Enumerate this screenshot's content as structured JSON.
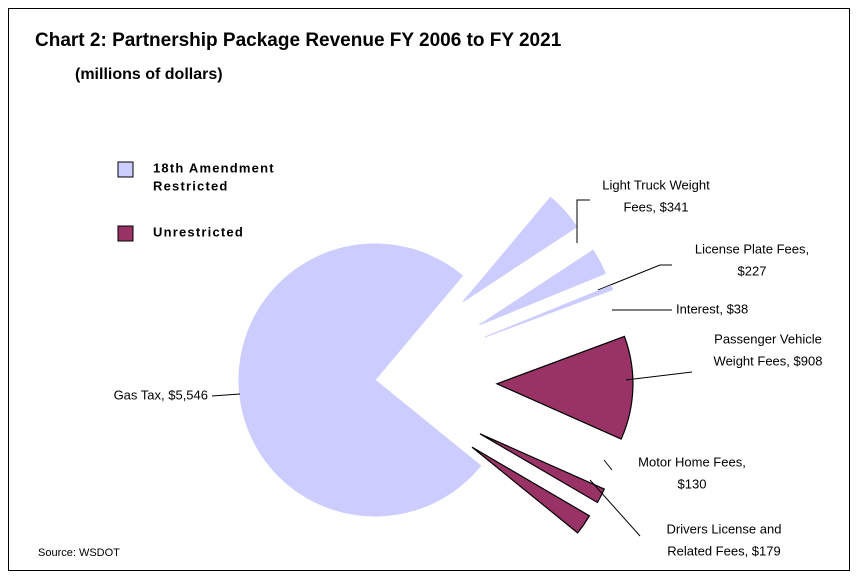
{
  "chart_data": {
    "type": "pie",
    "title": "Chart 2: Partnership Package Revenue FY 2006 to FY 2021",
    "subtitle": "(millions of dollars)",
    "source": "Source: WSDOT",
    "categories": [
      "Gas Tax",
      "Light Truck Weight Fees",
      "License Plate Fees",
      "Interest",
      "Passenger Vehicle Weight Fees",
      "Motor Home Fees",
      "Drivers License and Related Fees"
    ],
    "values": [
      5546,
      341,
      227,
      38,
      908,
      130,
      179
    ],
    "labels": [
      [
        "Gas Tax, $5,546"
      ],
      [
        "Light Truck Weight",
        "Fees, $341"
      ],
      [
        "License Plate Fees,",
        "$227"
      ],
      [
        "Interest, $38"
      ],
      [
        "Passenger Vehicle",
        "Weight Fees, $908"
      ],
      [
        "Motor Home Fees,",
        "$130"
      ],
      [
        "Drivers License and",
        "Related Fees, $179"
      ]
    ],
    "colors": [
      "#ccccff",
      "#ccccff",
      "#ccccff",
      "#ccccff",
      "#993366",
      "#993366",
      "#993366"
    ],
    "legend": [
      {
        "name": [
          "18th Amendment",
          "Restricted"
        ],
        "color": "#ccccff"
      },
      {
        "name": [
          "Unrestricted"
        ],
        "color": "#993366"
      }
    ]
  }
}
